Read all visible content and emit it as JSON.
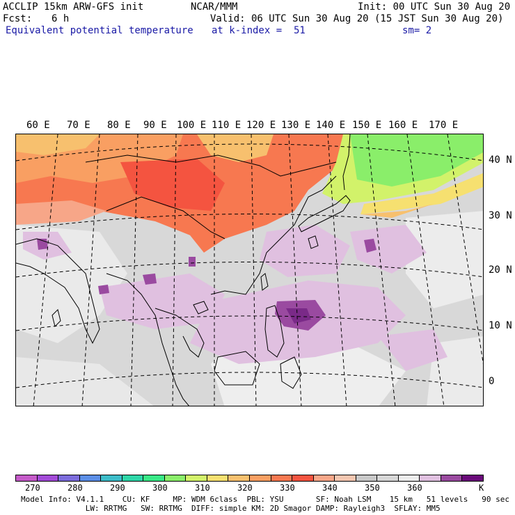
{
  "header": {
    "model": "ACCLIP 15km ARW-GFS init",
    "fcst_label": "Fcst:",
    "fcst_value": "6 h",
    "org": "NCAR/MMM",
    "init": "Init: 00 UTC Sun 30 Aug 20",
    "valid": "Valid: 06 UTC Sun 30 Aug 20 (15 JST Sun 30 Aug 20)",
    "field": "Equivalent potential temperature",
    "level": "at k-index =  51",
    "smooth": "sm= 2"
  },
  "map": {
    "lon_labels": [
      "60 E",
      "70 E",
      "80 E",
      "90 E",
      "100 E",
      "110 E",
      "120 E",
      "130 E",
      "140 E",
      "150 E",
      "160 E",
      "170 E"
    ],
    "lat_labels": [
      "40 N",
      "30 N",
      "20 N",
      "10 N",
      "0"
    ]
  },
  "colorbar": {
    "colors": [
      "#c45ac8",
      "#a24ad7",
      "#7c6cdc",
      "#5b8ee6",
      "#3cbcc8",
      "#2ed6a8",
      "#38e886",
      "#8aee6a",
      "#d2f26a",
      "#f6e070",
      "#f7c06e",
      "#f99f62",
      "#f77850",
      "#f45440",
      "#f7a688",
      "#f3c6b0",
      "#c8c8c8",
      "#d6d6d6",
      "#ececec",
      "#e0c0e0",
      "#9a4aa0",
      "#6a0a7a"
    ],
    "ticks": [
      "270",
      "280",
      "290",
      "300",
      "310",
      "320",
      "330",
      "340",
      "350",
      "360",
      "K"
    ]
  },
  "footer": {
    "line1": "Model Info: V4.1.1    CU: KF     MP: WDM 6class  PBL: YSU       SF: Noah LSM    15 km   51 levels   90 sec",
    "line2": "              LW: RRTMG   SW: RRTMG  DIFF: simple KM: 2D Smagor DAMP: Rayleigh3  SFLAY: MM5"
  }
}
